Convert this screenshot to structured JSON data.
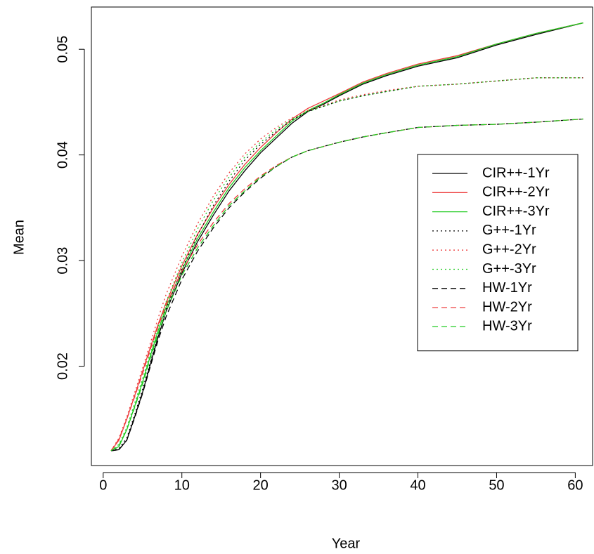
{
  "chart_data": {
    "type": "line",
    "x_label": "Year",
    "y_label": "Mean",
    "x": [
      1,
      2,
      3,
      4,
      5,
      6,
      7,
      8,
      10,
      12,
      14,
      16,
      18,
      20,
      22,
      24,
      26,
      28,
      30,
      33,
      36,
      40,
      45,
      50,
      55,
      61
    ],
    "series": [
      {
        "name": "CIR++-1Yr",
        "color": "#000000",
        "linestyle": "solid",
        "values": [
          0.012,
          0.0121,
          0.013,
          0.0152,
          0.0175,
          0.0202,
          0.0228,
          0.0252,
          0.0288,
          0.0318,
          0.0343,
          0.0366,
          0.0385,
          0.0402,
          0.0416,
          0.043,
          0.0441,
          0.0448,
          0.0456,
          0.0467,
          0.0475,
          0.0484,
          0.0492,
          0.0504,
          0.0514,
          0.0525
        ]
      },
      {
        "name": "CIR++-2Yr",
        "color": "#ee3b3b",
        "linestyle": "solid",
        "values": [
          0.012,
          0.013,
          0.015,
          0.0172,
          0.0195,
          0.0218,
          0.024,
          0.026,
          0.0295,
          0.0325,
          0.035,
          0.0372,
          0.0391,
          0.0407,
          0.0421,
          0.0434,
          0.0444,
          0.0451,
          0.0458,
          0.0469,
          0.0477,
          0.0486,
          0.0494,
          0.0505,
          0.0515,
          0.0525
        ]
      },
      {
        "name": "CIR++-3Yr",
        "color": "#22cc22",
        "linestyle": "solid",
        "values": [
          0.012,
          0.0124,
          0.014,
          0.0162,
          0.0185,
          0.021,
          0.0234,
          0.0256,
          0.0291,
          0.0321,
          0.0346,
          0.0369,
          0.0388,
          0.0404,
          0.0418,
          0.0432,
          0.0442,
          0.0449,
          0.0457,
          0.0468,
          0.0476,
          0.0485,
          0.0493,
          0.0505,
          0.0515,
          0.0525
        ]
      },
      {
        "name": "G++-1Yr",
        "color": "#000000",
        "linestyle": "dotted",
        "values": [
          0.012,
          0.0122,
          0.0132,
          0.0154,
          0.0178,
          0.0204,
          0.023,
          0.0254,
          0.0292,
          0.0324,
          0.0352,
          0.0375,
          0.0395,
          0.041,
          0.0422,
          0.0433,
          0.0441,
          0.0446,
          0.0451,
          0.0456,
          0.046,
          0.0465,
          0.0467,
          0.047,
          0.0473,
          0.0473
        ]
      },
      {
        "name": "G++-2Yr",
        "color": "#ee3b3b",
        "linestyle": "dotted",
        "values": [
          0.012,
          0.0132,
          0.0152,
          0.0175,
          0.0198,
          0.0222,
          0.0246,
          0.0268,
          0.0304,
          0.0335,
          0.0361,
          0.0383,
          0.0401,
          0.0415,
          0.0426,
          0.0435,
          0.0442,
          0.0447,
          0.0452,
          0.0457,
          0.0461,
          0.0465,
          0.0467,
          0.047,
          0.0473,
          0.0473
        ]
      },
      {
        "name": "G++-3Yr",
        "color": "#22cc22",
        "linestyle": "dotted",
        "values": [
          0.012,
          0.0126,
          0.0142,
          0.0165,
          0.0188,
          0.0213,
          0.0238,
          0.0261,
          0.0298,
          0.033,
          0.0357,
          0.0379,
          0.0398,
          0.0412,
          0.0424,
          0.0434,
          0.0441,
          0.0446,
          0.0451,
          0.0456,
          0.046,
          0.0465,
          0.0467,
          0.047,
          0.0473,
          0.0473
        ]
      },
      {
        "name": "HW-1Yr",
        "color": "#000000",
        "linestyle": "dashed",
        "values": [
          0.012,
          0.0121,
          0.013,
          0.0151,
          0.0174,
          0.02,
          0.0225,
          0.0247,
          0.0282,
          0.0309,
          0.0331,
          0.035,
          0.0365,
          0.0378,
          0.0389,
          0.0398,
          0.0404,
          0.0408,
          0.0412,
          0.0417,
          0.0421,
          0.0426,
          0.0428,
          0.0429,
          0.0431,
          0.0434
        ]
      },
      {
        "name": "HW-2Yr",
        "color": "#ee3b3b",
        "linestyle": "dashed",
        "values": [
          0.012,
          0.0131,
          0.015,
          0.0171,
          0.0193,
          0.0216,
          0.0238,
          0.0258,
          0.029,
          0.0315,
          0.0336,
          0.0354,
          0.0368,
          0.038,
          0.039,
          0.0398,
          0.0404,
          0.0408,
          0.0412,
          0.0417,
          0.0421,
          0.0426,
          0.0428,
          0.0429,
          0.0431,
          0.0434
        ]
      },
      {
        "name": "HW-3Yr",
        "color": "#22cc22",
        "linestyle": "dashed",
        "values": [
          0.012,
          0.0125,
          0.014,
          0.0161,
          0.0183,
          0.0208,
          0.0231,
          0.0252,
          0.0286,
          0.0312,
          0.0333,
          0.0352,
          0.0366,
          0.0379,
          0.0389,
          0.0398,
          0.0404,
          0.0408,
          0.0412,
          0.0417,
          0.0421,
          0.0426,
          0.0428,
          0.0429,
          0.0431,
          0.0434
        ]
      }
    ],
    "xlim": [
      -1.5,
      62.2
    ],
    "xticks": [
      0,
      10,
      20,
      30,
      40,
      50,
      60
    ],
    "ylim": [
      0.0106,
      0.054
    ],
    "yticks": [
      0.02,
      0.03,
      0.04,
      0.05
    ],
    "legend": "right"
  }
}
